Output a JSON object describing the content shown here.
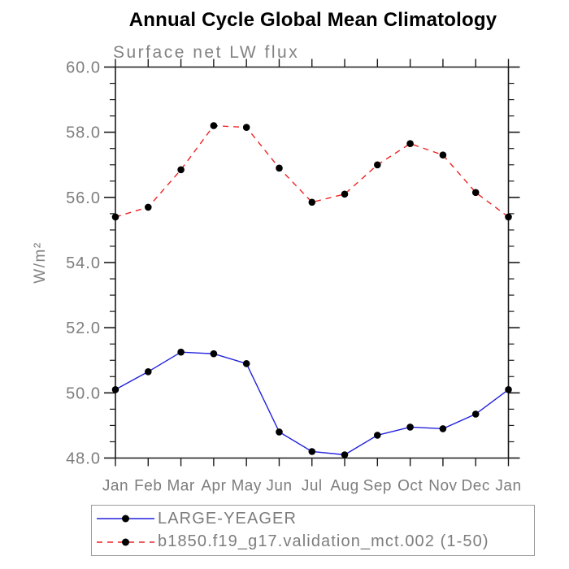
{
  "chart_data": {
    "type": "line",
    "title": "Annual Cycle Global Mean Climatology",
    "subtitle": "Surface net LW flux",
    "ylabel": "W/m²",
    "xlabel": "",
    "categories": [
      "Jan",
      "Feb",
      "Mar",
      "Apr",
      "May",
      "Jun",
      "Jul",
      "Aug",
      "Sep",
      "Oct",
      "Nov",
      "Dec",
      "Jan"
    ],
    "ylim": [
      48.0,
      60.0
    ],
    "ytick_major_interval": 2.0,
    "ytick_minor_interval": 0.5,
    "ytick_labels": [
      "48.0",
      "50.0",
      "52.0",
      "54.0",
      "56.0",
      "58.0",
      "60.0"
    ],
    "grid": "off",
    "legend_position": "bottom-left",
    "series": [
      {
        "name": "LARGE-YEAGER",
        "color": "#2222dd",
        "line_style": "solid",
        "marker": "filled-circle",
        "marker_color": "#000000",
        "values": [
          50.1,
          50.65,
          51.25,
          51.2,
          50.9,
          48.8,
          48.2,
          48.1,
          48.7,
          48.95,
          48.9,
          49.35,
          50.1
        ]
      },
      {
        "name": "b1850.f19_g17.validation_mct.002 (1-50)",
        "color": "#ee2222",
        "line_style": "dashed",
        "marker": "filled-circle",
        "marker_color": "#000000",
        "values": [
          55.4,
          55.7,
          56.85,
          58.2,
          58.15,
          56.9,
          55.85,
          56.1,
          57.0,
          57.65,
          57.3,
          56.15,
          55.4
        ]
      }
    ],
    "colors": {
      "title_text": "#000000",
      "axis_text": "#7d7d7d",
      "axis_line": "#1a1a1a",
      "background": "#ffffff",
      "legend_border": "#9b9b9b"
    }
  }
}
